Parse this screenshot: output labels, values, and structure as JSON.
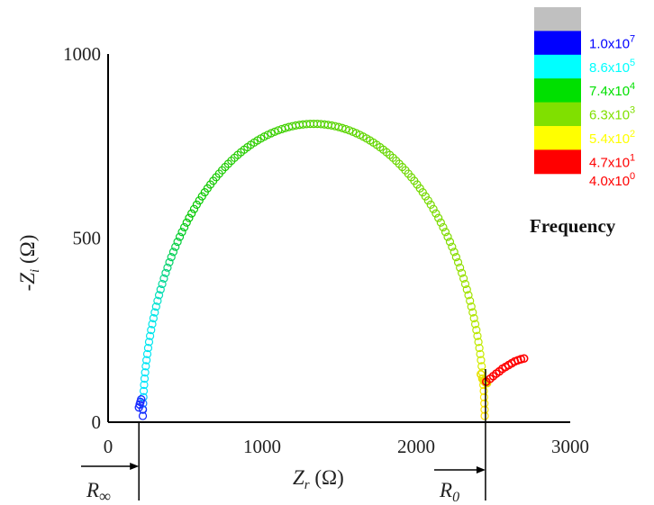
{
  "chart_data": {
    "type": "scatter",
    "title": "",
    "xlabel": "Z_r (Ω)",
    "ylabel": "-Z_i (Ω)",
    "xlim": [
      0,
      3000
    ],
    "ylim": [
      0,
      1000
    ],
    "x_ticks": [
      "0",
      "1000",
      "2000",
      "3000"
    ],
    "y_ticks": [
      "0",
      "500",
      "1000"
    ],
    "grid": false,
    "legend_position": "top-right",
    "legend_title": "Frequency",
    "legend": [
      {
        "label": "",
        "color": "#c0c0c0"
      },
      {
        "label": "1.0x10^7",
        "mantissa": "1.0x10",
        "exp": "7",
        "color": "#0000ff"
      },
      {
        "label": "8.6x10^5",
        "mantissa": "8.6x10",
        "exp": "5",
        "color": "#00ffff"
      },
      {
        "label": "7.4x10^4",
        "mantissa": "7.4x10",
        "exp": "4",
        "color": "#00e000"
      },
      {
        "label": "6.3x10^3",
        "mantissa": "6.3x10",
        "exp": "3",
        "color": "#80e000"
      },
      {
        "label": "5.4x10^2",
        "mantissa": "5.4x10",
        "exp": "2",
        "color": "#ffff00"
      },
      {
        "label": "4.7x10^1",
        "mantissa": "4.7x10",
        "exp": "1",
        "color": "#ff0000"
      },
      {
        "label": "4.0x10^0",
        "mantissa": "4.0x10",
        "exp": "0",
        "color": "#ff0000"
      }
    ],
    "series": [
      {
        "description": "semicircle arc",
        "center_x": 1335,
        "radius": 1110,
        "y_scale": 0.73,
        "start_x": 225,
        "end_x": 2445,
        "marker": "open circle"
      },
      {
        "description": "low-frequency tail",
        "x": [
          2455,
          2480,
          2500,
          2520,
          2540,
          2560,
          2580,
          2600,
          2620,
          2640,
          2660,
          2680,
          2700
        ],
        "y": [
          110,
          118,
          125,
          132,
          138,
          145,
          150,
          155,
          160,
          165,
          168,
          171,
          173
        ],
        "color": "#ff0000",
        "marker": "open circle"
      }
    ],
    "annotations": {
      "r_inf_x": 200,
      "r0_x": 2450,
      "r_inf_label": "R",
      "r_inf_subscript": "∞",
      "r0_label": "R",
      "r0_subscript": "0"
    }
  }
}
